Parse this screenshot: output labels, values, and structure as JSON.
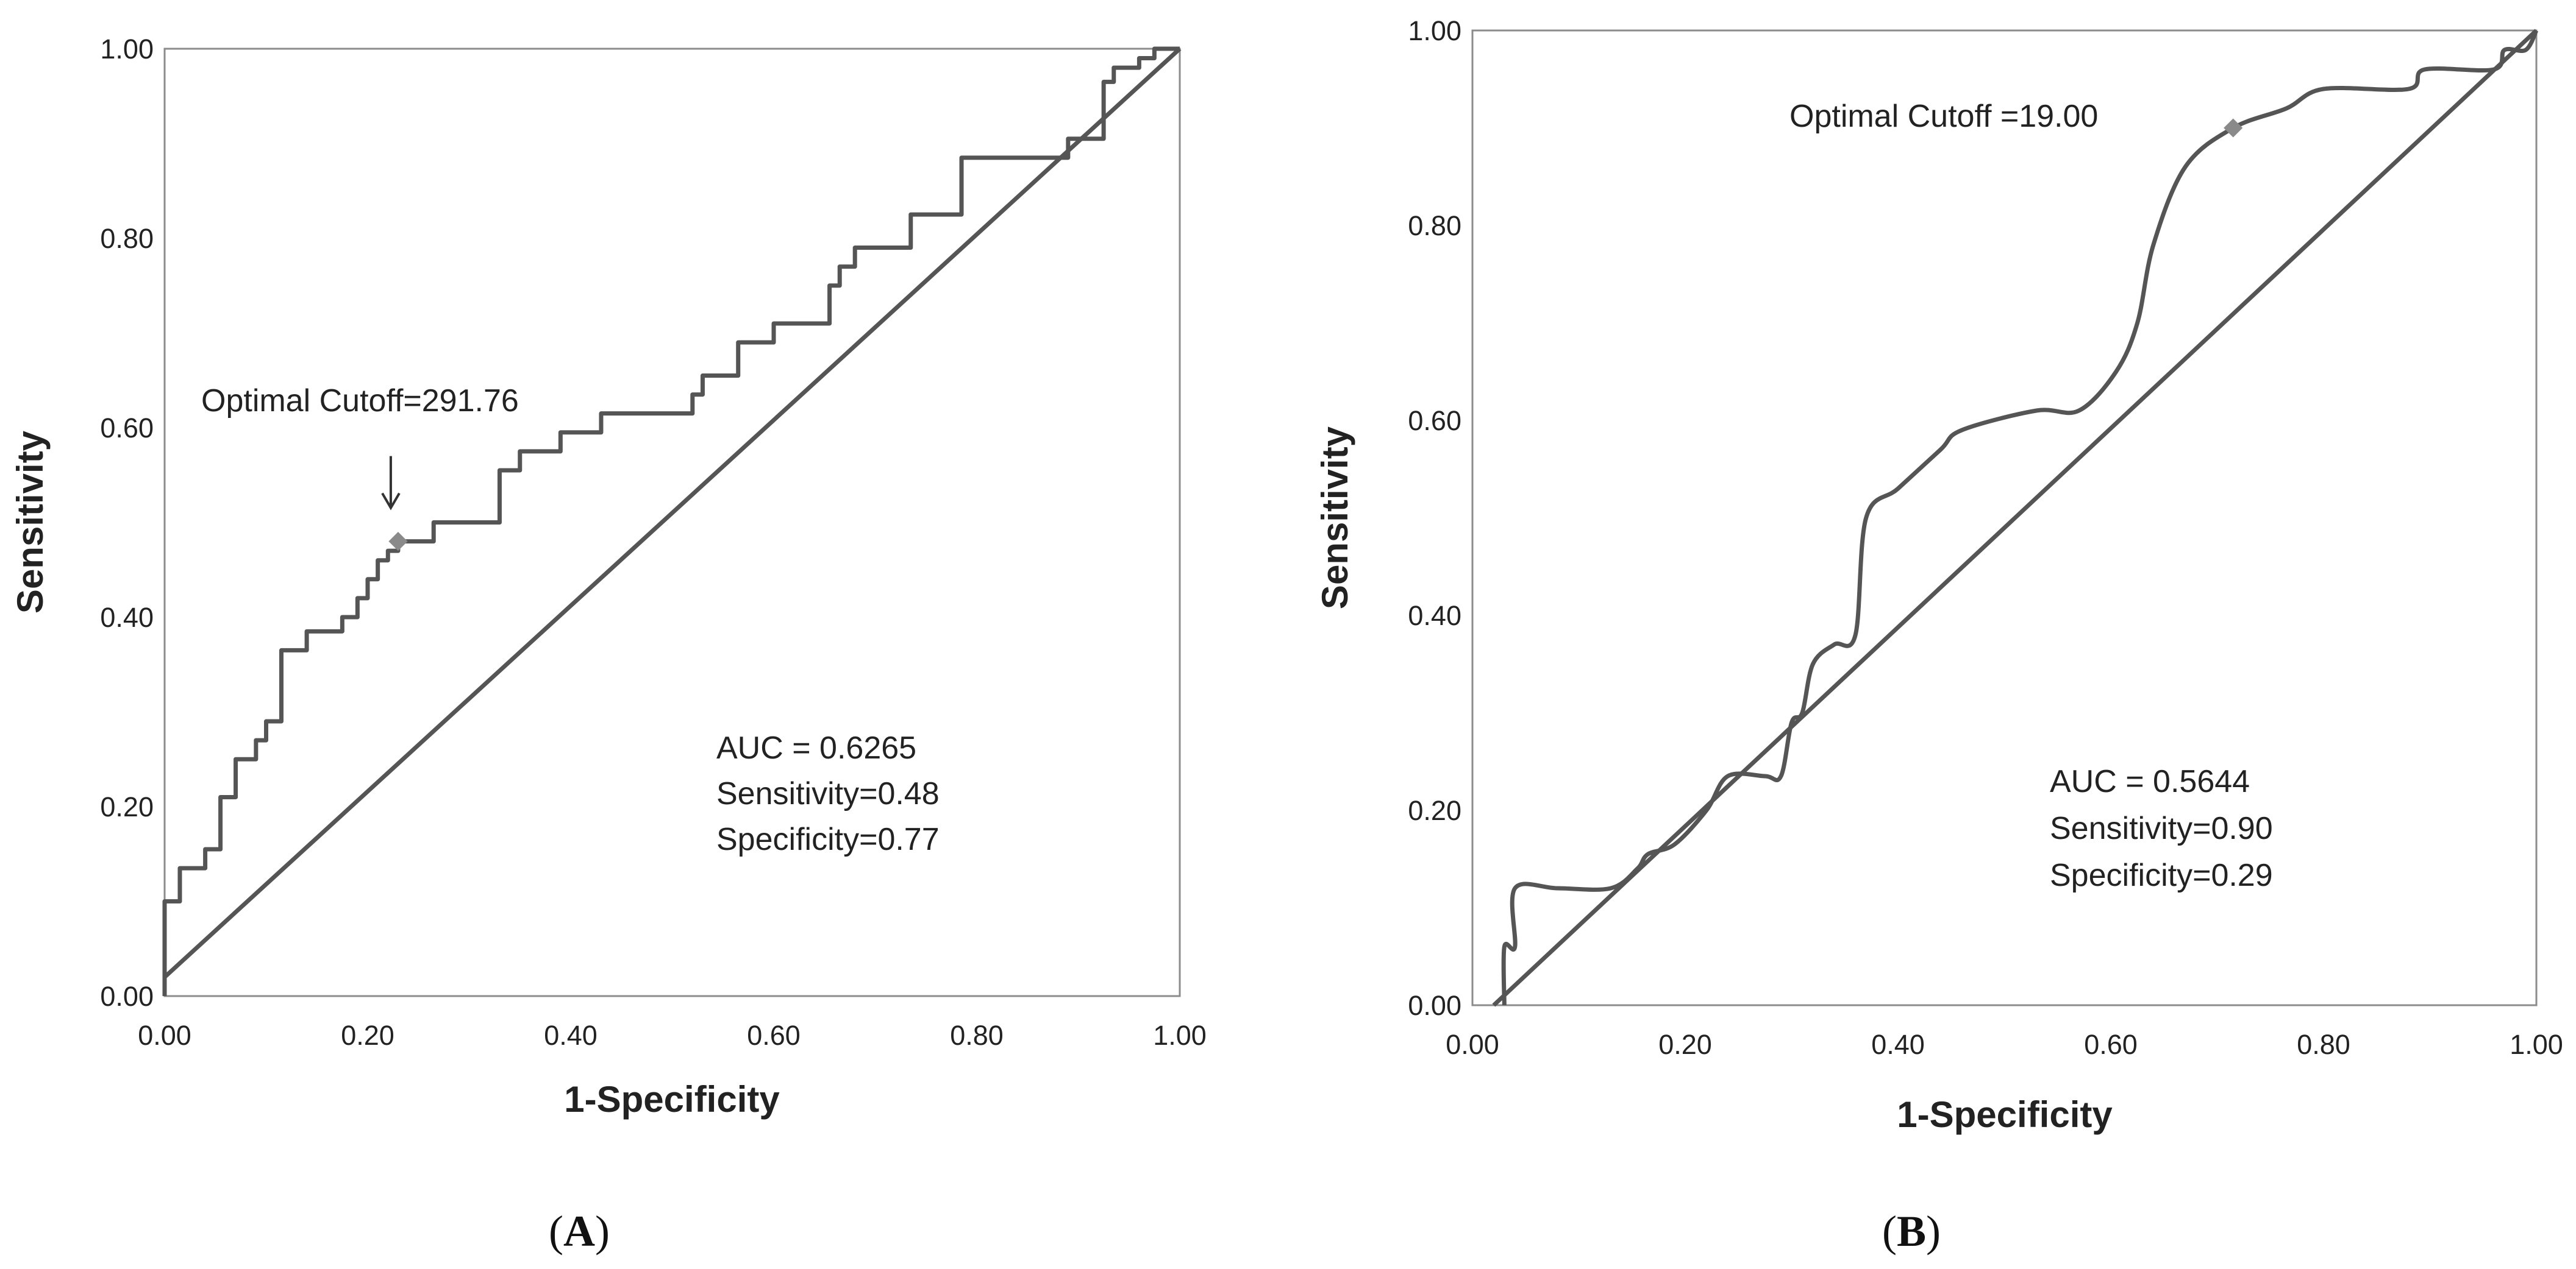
{
  "chart_data": [
    {
      "type": "line",
      "panel": "A",
      "panel_label": "A",
      "xlabel": "1-Specificity",
      "ylabel": "Sensitivity",
      "xlim": [
        0,
        1
      ],
      "ylim": [
        0,
        1
      ],
      "x_ticks": [
        "0.00",
        "0.20",
        "0.40",
        "0.60",
        "0.80",
        "1.00"
      ],
      "y_ticks": [
        "0.00",
        "0.20",
        "0.40",
        "0.60",
        "0.80",
        "1.00"
      ],
      "grid": false,
      "series": [
        {
          "style": "step",
          "points": [
            [
              0.0,
              0.0
            ],
            [
              0.0,
              0.1
            ],
            [
              0.015,
              0.1
            ],
            [
              0.015,
              0.135
            ],
            [
              0.04,
              0.135
            ],
            [
              0.04,
              0.155
            ],
            [
              0.055,
              0.155
            ],
            [
              0.055,
              0.21
            ],
            [
              0.07,
              0.21
            ],
            [
              0.07,
              0.25
            ],
            [
              0.09,
              0.25
            ],
            [
              0.09,
              0.27
            ],
            [
              0.1,
              0.27
            ],
            [
              0.1,
              0.29
            ],
            [
              0.115,
              0.29
            ],
            [
              0.115,
              0.365
            ],
            [
              0.14,
              0.365
            ],
            [
              0.14,
              0.385
            ],
            [
              0.175,
              0.385
            ],
            [
              0.175,
              0.4
            ],
            [
              0.19,
              0.4
            ],
            [
              0.19,
              0.42
            ],
            [
              0.2,
              0.42
            ],
            [
              0.2,
              0.44
            ],
            [
              0.21,
              0.44
            ],
            [
              0.21,
              0.46
            ],
            [
              0.22,
              0.46
            ],
            [
              0.22,
              0.47
            ],
            [
              0.23,
              0.47
            ],
            [
              0.23,
              0.48
            ],
            [
              0.265,
              0.48
            ],
            [
              0.265,
              0.5
            ],
            [
              0.33,
              0.5
            ],
            [
              0.33,
              0.555
            ],
            [
              0.35,
              0.555
            ],
            [
              0.35,
              0.575
            ],
            [
              0.39,
              0.575
            ],
            [
              0.39,
              0.595
            ],
            [
              0.43,
              0.595
            ],
            [
              0.43,
              0.615
            ],
            [
              0.52,
              0.615
            ],
            [
              0.52,
              0.635
            ],
            [
              0.53,
              0.635
            ],
            [
              0.53,
              0.655
            ],
            [
              0.565,
              0.655
            ],
            [
              0.565,
              0.69
            ],
            [
              0.6,
              0.69
            ],
            [
              0.6,
              0.71
            ],
            [
              0.655,
              0.71
            ],
            [
              0.655,
              0.75
            ],
            [
              0.665,
              0.75
            ],
            [
              0.665,
              0.77
            ],
            [
              0.68,
              0.77
            ],
            [
              0.68,
              0.79
            ],
            [
              0.735,
              0.79
            ],
            [
              0.735,
              0.825
            ],
            [
              0.785,
              0.825
            ],
            [
              0.785,
              0.885
            ],
            [
              0.89,
              0.885
            ],
            [
              0.89,
              0.905
            ],
            [
              0.925,
              0.905
            ],
            [
              0.925,
              0.965
            ],
            [
              0.935,
              0.965
            ],
            [
              0.935,
              0.98
            ],
            [
              0.96,
              0.98
            ],
            [
              0.96,
              0.99
            ],
            [
              0.975,
              0.99
            ],
            [
              0.975,
              1.0
            ],
            [
              1.0,
              1.0
            ]
          ]
        },
        {
          "style": "reference",
          "points": [
            [
              0.0,
              0.02
            ],
            [
              1.0,
              1.0
            ]
          ]
        }
      ],
      "optimal_point": [
        0.23,
        0.48
      ],
      "optimal_label": "Optimal Cutoff=291.76",
      "arrow": true,
      "annotations": [
        "AUC = 0.6265",
        "Sensitivity=0.48",
        "Specificity=0.77"
      ]
    },
    {
      "type": "line",
      "panel": "B",
      "panel_label": "B",
      "xlabel": "1-Specificity",
      "ylabel": "Sensitivity",
      "xlim": [
        0,
        1
      ],
      "ylim": [
        0,
        1
      ],
      "x_ticks": [
        "0.00",
        "0.20",
        "0.40",
        "0.60",
        "0.80",
        "1.00"
      ],
      "y_ticks": [
        "0.00",
        "0.20",
        "0.40",
        "0.60",
        "0.80",
        "1.00"
      ],
      "grid": false,
      "series": [
        {
          "style": "smooth",
          "points": [
            [
              0.03,
              0.0
            ],
            [
              0.03,
              0.06
            ],
            [
              0.04,
              0.06
            ],
            [
              0.04,
              0.12
            ],
            [
              0.08,
              0.12
            ],
            [
              0.13,
              0.12
            ],
            [
              0.155,
              0.14
            ],
            [
              0.165,
              0.155
            ],
            [
              0.19,
              0.165
            ],
            [
              0.22,
              0.2
            ],
            [
              0.24,
              0.235
            ],
            [
              0.275,
              0.235
            ],
            [
              0.29,
              0.235
            ],
            [
              0.3,
              0.29
            ],
            [
              0.31,
              0.3
            ],
            [
              0.32,
              0.35
            ],
            [
              0.34,
              0.37
            ],
            [
              0.36,
              0.38
            ],
            [
              0.37,
              0.5
            ],
            [
              0.4,
              0.53
            ],
            [
              0.44,
              0.57
            ],
            [
              0.46,
              0.59
            ],
            [
              0.53,
              0.61
            ],
            [
              0.57,
              0.61
            ],
            [
              0.605,
              0.65
            ],
            [
              0.625,
              0.7
            ],
            [
              0.64,
              0.78
            ],
            [
              0.67,
              0.86
            ],
            [
              0.715,
              0.9
            ],
            [
              0.765,
              0.92
            ],
            [
              0.8,
              0.94
            ],
            [
              0.88,
              0.94
            ],
            [
              0.895,
              0.96
            ],
            [
              0.96,
              0.96
            ],
            [
              0.97,
              0.98
            ],
            [
              0.99,
              0.98
            ],
            [
              1.0,
              1.0
            ]
          ]
        },
        {
          "style": "reference",
          "points": [
            [
              0.02,
              0.0
            ],
            [
              1.0,
              1.0
            ]
          ]
        }
      ],
      "optimal_point": [
        0.715,
        0.9
      ],
      "optimal_label": "Optimal Cutoff =19.00",
      "arrow": false,
      "annotations": [
        "AUC = 0.5644",
        "Sensitivity=0.90",
        "Specificity=0.29"
      ]
    }
  ],
  "colors": {
    "curve": "#555555",
    "axis": "#8c8c8c",
    "marker": "#8a8a8a",
    "text": "#222222"
  }
}
